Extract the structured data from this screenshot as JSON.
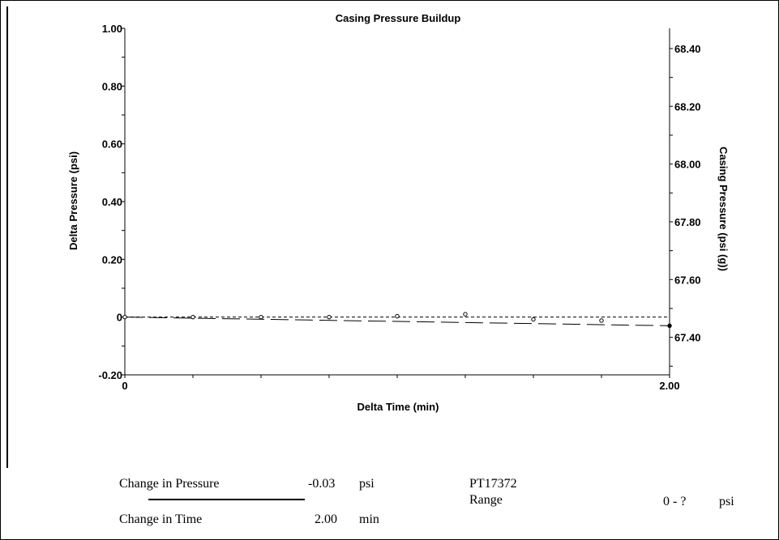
{
  "chart_data": {
    "type": "scatter",
    "title": "Casing Pressure Buildup",
    "xlabel": "Delta Time (min)",
    "ylabel": "Delta Pressure (psi)",
    "y2label": "Casing Pressure (psi (g))",
    "xlim": [
      0,
      2.0
    ],
    "ylim": [
      -0.2,
      1.0
    ],
    "y2lim": [
      67.27,
      68.47
    ],
    "x_ticks": [
      "0",
      "2.00"
    ],
    "y_ticks": [
      {
        "value": 1.0,
        "label": "1.00"
      },
      {
        "value": 0.8,
        "label": "0.80"
      },
      {
        "value": 0.6,
        "label": "0.60"
      },
      {
        "value": 0.4,
        "label": "0.40"
      },
      {
        "value": 0.2,
        "label": "0.20"
      },
      {
        "value": 0,
        "label": "0"
      },
      {
        "value": -0.2,
        "label": "-0.20"
      }
    ],
    "y2_ticks": [
      {
        "value": 68.4,
        "label": "68.40"
      },
      {
        "value": 68.2,
        "label": "68.20"
      },
      {
        "value": 68.0,
        "label": "68.00"
      },
      {
        "value": 67.8,
        "label": "67.80"
      },
      {
        "value": 67.6,
        "label": "67.60"
      },
      {
        "value": 67.4,
        "label": "67.40"
      }
    ],
    "points": {
      "x": [
        0,
        0.25,
        0.5,
        0.75,
        1.0,
        1.25,
        1.5,
        1.75,
        2.0
      ],
      "y": [
        0,
        0.0,
        0.0,
        0.0,
        0.003,
        0.01,
        -0.008,
        -0.012,
        -0.03
      ]
    },
    "reference_line_y": 0,
    "trend_line": {
      "x": [
        0,
        2.0
      ],
      "y": [
        0,
        -0.03
      ]
    },
    "grid": false
  },
  "summary": {
    "pressure_label": "Change in Pressure",
    "pressure_value": "-0.03",
    "pressure_unit": "psi",
    "time_label": "Change in Time",
    "time_value": "2.00",
    "time_unit": "min",
    "gauge_id": "PT17372",
    "range_label": "Range",
    "range_value": "0 - ?",
    "range_unit": "psi"
  }
}
